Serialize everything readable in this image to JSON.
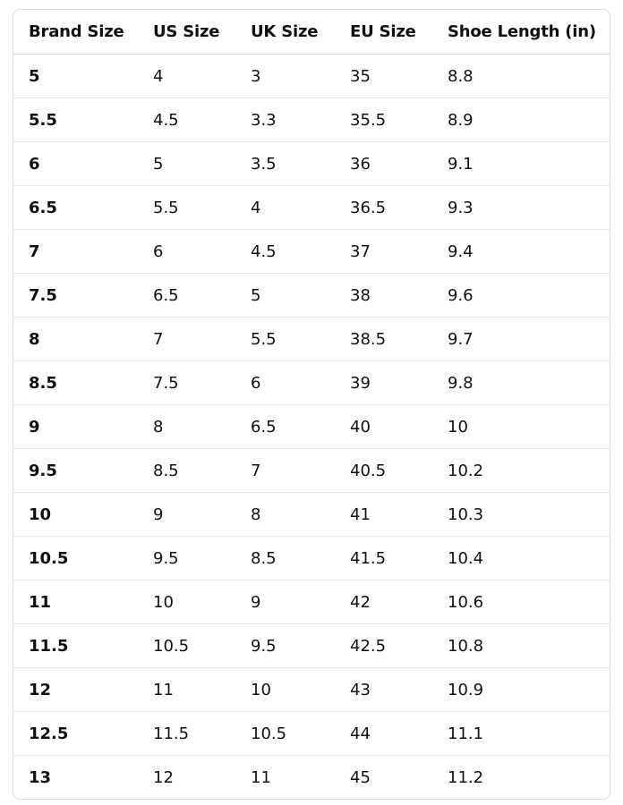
{
  "table": {
    "headers": [
      "Brand Size",
      "US Size",
      "UK Size",
      "EU Size",
      "Shoe Length (in)"
    ],
    "rows": [
      [
        "5",
        "4",
        "3",
        "35",
        "8.8"
      ],
      [
        "5.5",
        "4.5",
        "3.3",
        "35.5",
        "8.9"
      ],
      [
        "6",
        "5",
        "3.5",
        "36",
        "9.1"
      ],
      [
        "6.5",
        "5.5",
        "4",
        "36.5",
        "9.3"
      ],
      [
        "7",
        "6",
        "4.5",
        "37",
        "9.4"
      ],
      [
        "7.5",
        "6.5",
        "5",
        "38",
        "9.6"
      ],
      [
        "8",
        "7",
        "5.5",
        "38.5",
        "9.7"
      ],
      [
        "8.5",
        "7.5",
        "6",
        "39",
        "9.8"
      ],
      [
        "9",
        "8",
        "6.5",
        "40",
        "10"
      ],
      [
        "9.5",
        "8.5",
        "7",
        "40.5",
        "10.2"
      ],
      [
        "10",
        "9",
        "8",
        "41",
        "10.3"
      ],
      [
        "10.5",
        "9.5",
        "8.5",
        "41.5",
        "10.4"
      ],
      [
        "11",
        "10",
        "9",
        "42",
        "10.6"
      ],
      [
        "11.5",
        "10.5",
        "9.5",
        "42.5",
        "10.8"
      ],
      [
        "12",
        "11",
        "10",
        "43",
        "10.9"
      ],
      [
        "12.5",
        "11.5",
        "10.5",
        "44",
        "11.1"
      ],
      [
        "13",
        "12",
        "11",
        "45",
        "11.2"
      ]
    ]
  }
}
